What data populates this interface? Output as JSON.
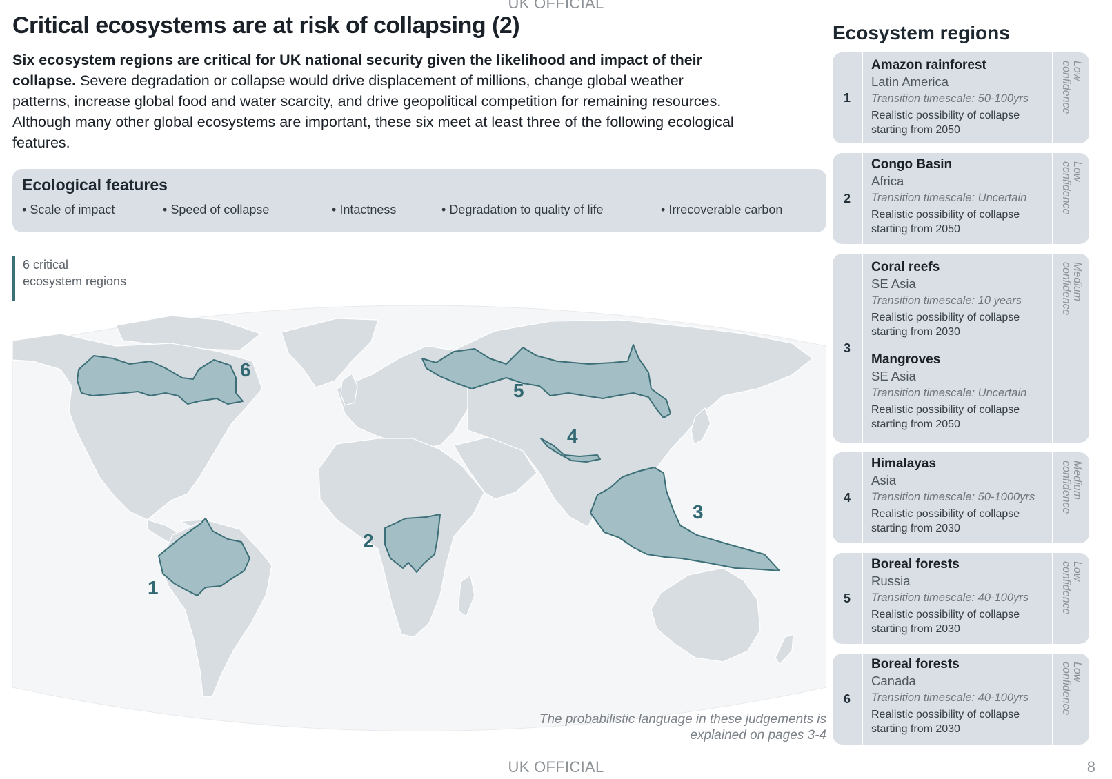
{
  "classification": "UK OFFICIAL",
  "page_number": "8",
  "title": "Critical ecosystems are at risk of collapsing (2)",
  "intro": {
    "lead": "Six ecosystem regions are critical for UK national security given the likelihood and impact of their collapse.",
    "body": " Severe degradation or collapse would drive displacement of millions, change global weather patterns, increase global food and water scarcity, and drive geopolitical competition for remaining resources. Although many other global ecosystems are important, these six meet at least three of the following ecological features."
  },
  "features": {
    "title": "Ecological features",
    "items": [
      "Scale of impact",
      "Speed of collapse",
      "Intactness",
      "Degradation to quality of life",
      "Irrecoverable carbon"
    ]
  },
  "map": {
    "legend": "6 critical\necosystem regions",
    "note": "The probabilistic language in these judgements is explained on pages 3-4",
    "region_labels": [
      "1",
      "2",
      "3",
      "4",
      "5",
      "6"
    ],
    "colors": {
      "ocean": "#f5f6f7",
      "land": "#d8dde2",
      "region_fill": "#a3bfc5",
      "region_stroke": "#3c6f77",
      "label": "#326872"
    }
  },
  "sidebar": {
    "title": "Ecosystem regions",
    "regions": [
      {
        "number": "1",
        "confidence": "Low\nconfidence",
        "entries": [
          {
            "name": "Amazon rainforest",
            "place": "Latin America",
            "timescale": "Transition timescale: 50-100yrs",
            "possibility": "Realistic possibility of collapse starting from 2050"
          }
        ]
      },
      {
        "number": "2",
        "confidence": "Low\nconfidence",
        "entries": [
          {
            "name": "Congo Basin",
            "place": "Africa",
            "timescale": "Transition timescale: Uncertain",
            "possibility": "Realistic possibility of collapse starting from 2050"
          }
        ]
      },
      {
        "number": "3",
        "confidence": "Medium\nconfidence",
        "entries": [
          {
            "name": "Coral reefs",
            "place": "SE Asia",
            "timescale": "Transition timescale: 10 years",
            "possibility": "Realistic possibility of collapse starting from 2030"
          },
          {
            "name": "Mangroves",
            "place": "SE Asia",
            "timescale": "Transition timescale: Uncertain",
            "possibility": "Realistic possibility of collapse starting from 2050"
          }
        ]
      },
      {
        "number": "4",
        "confidence": "Medium\nconfidence",
        "entries": [
          {
            "name": "Himalayas",
            "place": "Asia",
            "timescale": "Transition timescale: 50-1000yrs",
            "possibility": "Realistic possibility of collapse starting from 2030"
          }
        ]
      },
      {
        "number": "5",
        "confidence": "Low\nconfidence",
        "entries": [
          {
            "name": "Boreal forests",
            "place": "Russia",
            "timescale": "Transition timescale: 40-100yrs",
            "possibility": "Realistic possibility of collapse starting from 2030"
          }
        ]
      },
      {
        "number": "6",
        "confidence": "Low\nconfidence",
        "entries": [
          {
            "name": "Boreal forests",
            "place": "Canada",
            "timescale": "Transition timescale: 40-100yrs",
            "possibility": "Realistic possibility of collapse starting from 2030"
          }
        ]
      }
    ]
  }
}
